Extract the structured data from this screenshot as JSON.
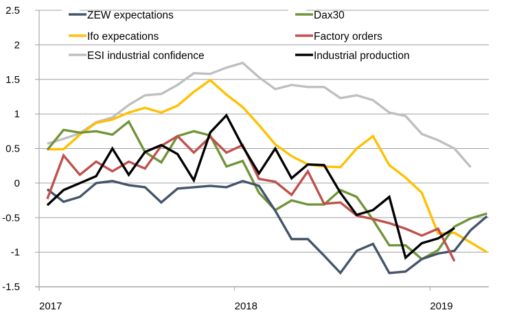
{
  "chart_data": {
    "type": "line",
    "title": "",
    "xlabel": "",
    "ylabel": "",
    "ylim": [
      -1.5,
      2.5
    ],
    "yticks": [
      "2.5",
      "2",
      "1.5",
      "1",
      "0.5",
      "0",
      "-0.5",
      "-1",
      "-1.5"
    ],
    "ytick_values": [
      2.5,
      2,
      1.5,
      1,
      0.5,
      0,
      -0.5,
      -1,
      -1.5
    ],
    "xticks": [
      "2017",
      "2018",
      "2019"
    ],
    "x_start": "2017-01",
    "x_frequency": "monthly",
    "x": [
      "2017-01",
      "2017-02",
      "2017-03",
      "2017-04",
      "2017-05",
      "2017-06",
      "2017-07",
      "2017-08",
      "2017-09",
      "2017-10",
      "2017-11",
      "2017-12",
      "2018-01",
      "2018-02",
      "2018-03",
      "2018-04",
      "2018-05",
      "2018-06",
      "2018-07",
      "2018-08",
      "2018-09",
      "2018-10",
      "2018-11",
      "2018-12",
      "2019-01",
      "2019-02",
      "2019-03",
      "2019-04"
    ],
    "grid": "horizontal",
    "legend_position": "top",
    "series": [
      {
        "name": "ZEW expectations",
        "color": "#44546A",
        "values": [
          -0.09,
          -0.27,
          -0.2,
          0.0,
          0.03,
          -0.03,
          -0.06,
          -0.28,
          -0.08,
          -0.06,
          -0.04,
          -0.06,
          0.03,
          -0.04,
          -0.4,
          -0.81,
          -0.81,
          -1.05,
          -1.3,
          -0.98,
          -0.88,
          -1.3,
          -1.28,
          -1.1,
          -1.02,
          -0.98,
          -0.68,
          -0.48
        ]
      },
      {
        "name": "Dax30",
        "color": "#70943A",
        "values": [
          0.48,
          0.77,
          0.73,
          0.75,
          0.7,
          0.89,
          0.45,
          0.3,
          0.68,
          0.75,
          0.69,
          0.24,
          0.32,
          -0.14,
          -0.39,
          -0.25,
          -0.31,
          -0.31,
          -0.1,
          -0.2,
          -0.53,
          -0.9,
          -0.9,
          -1.1,
          -0.97,
          -0.63,
          -0.51,
          -0.44
        ]
      },
      {
        "name": "Ifo expecations",
        "color": "#FFC000",
        "values": [
          0.49,
          0.49,
          0.7,
          0.87,
          0.92,
          1.02,
          1.09,
          1.02,
          1.12,
          1.32,
          1.49,
          1.28,
          1.1,
          0.84,
          0.56,
          0.39,
          0.27,
          0.24,
          0.23,
          0.5,
          0.68,
          0.26,
          0.08,
          -0.14,
          -0.73,
          -0.72,
          -0.86,
          -1.0
        ]
      },
      {
        "name": "Factory orders",
        "color": "#C0504D",
        "values": [
          -0.23,
          0.4,
          0.12,
          0.31,
          0.17,
          0.31,
          0.21,
          0.54,
          0.68,
          0.44,
          0.67,
          0.44,
          0.55,
          0.06,
          0.02,
          -0.17,
          0.17,
          -0.3,
          -0.28,
          -0.47,
          -0.52,
          -0.58,
          -0.66,
          -0.76,
          -0.66,
          -1.13,
          null,
          null
        ]
      },
      {
        "name": "ESI industrial confidence",
        "color": "#BFBFBF",
        "values": [
          0.57,
          0.64,
          0.72,
          0.88,
          0.95,
          1.13,
          1.27,
          1.29,
          1.42,
          1.59,
          1.58,
          1.67,
          1.74,
          1.53,
          1.36,
          1.42,
          1.39,
          1.39,
          1.23,
          1.27,
          1.2,
          1.02,
          0.97,
          0.71,
          0.62,
          0.5,
          0.23,
          null
        ]
      },
      {
        "name": "Industrial production",
        "color": "#000000",
        "values": [
          -0.32,
          -0.1,
          0.0,
          0.1,
          0.5,
          0.12,
          0.45,
          0.55,
          0.42,
          0.04,
          0.73,
          0.98,
          0.53,
          0.14,
          0.5,
          0.07,
          0.27,
          0.26,
          -0.14,
          -0.46,
          -0.39,
          -0.2,
          -1.08,
          -0.87,
          -0.8,
          -0.65,
          null,
          null
        ]
      }
    ]
  }
}
